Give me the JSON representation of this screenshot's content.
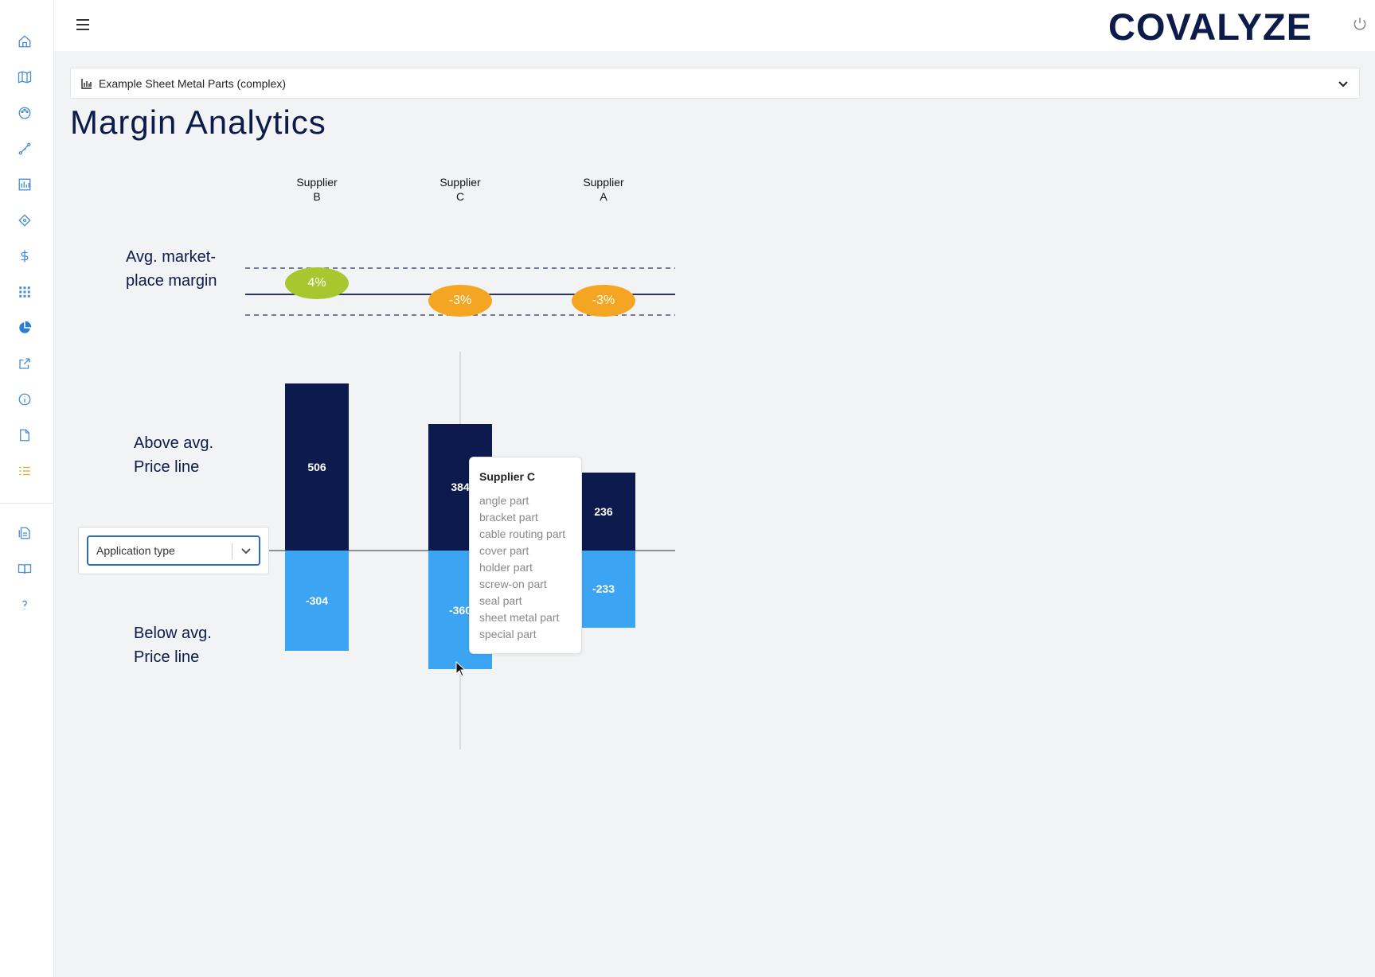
{
  "sidebar": {
    "items": [
      {
        "name": "home-icon",
        "color": "#4a8fd6"
      },
      {
        "name": "map-icon",
        "color": "#4a8fd6"
      },
      {
        "name": "palette-icon",
        "color": "#4a8fd6"
      },
      {
        "name": "flow-icon",
        "color": "#4a8fd6"
      },
      {
        "name": "chart-box-icon",
        "color": "#4a8fd6"
      },
      {
        "name": "crosshair-icon",
        "color": "#4a8fd6"
      },
      {
        "name": "dollar-icon",
        "color": "#4a8fd6"
      },
      {
        "name": "grid-icon",
        "color": "#4a8fd6"
      },
      {
        "name": "pie-chart-icon",
        "color": "#2a7fd4"
      },
      {
        "name": "external-link-icon",
        "color": "#4a8fd6"
      },
      {
        "name": "info-icon",
        "color": "#4a8fd6"
      },
      {
        "name": "document-icon",
        "color": "#4a8fd6"
      },
      {
        "name": "list-icon",
        "color": "#e0a420"
      },
      {
        "name": "export-doc-icon",
        "color": "#4a8fd6"
      },
      {
        "name": "book-icon",
        "color": "#4a8fd6"
      },
      {
        "name": "help-icon",
        "color": "#4a8fd6"
      }
    ]
  },
  "header": {
    "logo": "COVALYZE",
    "menu_icon": "hamburger-icon",
    "power_icon": "power-icon"
  },
  "dataset": {
    "label": "Example Sheet Metal Parts (complex)"
  },
  "page": {
    "title": "Margin Analytics"
  },
  "chart_data": {
    "type": "bar",
    "categories": [
      "Supplier\nB",
      "Supplier\nC",
      "Supplier\nA"
    ],
    "category_labels": [
      {
        "line1": "Supplier",
        "line2": "B"
      },
      {
        "line1": "Supplier",
        "line2": "C"
      },
      {
        "line1": "Supplier",
        "line2": "A"
      }
    ],
    "margin_row_label": {
      "line1": "Avg. market-",
      "line2": "place margin"
    },
    "above_row_label": {
      "line1": "Above avg.",
      "line2": "Price line"
    },
    "below_row_label": {
      "line1": "Below avg.",
      "line2": "Price line"
    },
    "margins": [
      "4%",
      "-3%",
      "-3%"
    ],
    "margin_values": [
      4,
      -3,
      -3
    ],
    "margin_colors": [
      "#a8c72e",
      "#f4a623",
      "#f4a623"
    ],
    "series": [
      {
        "values": [
          506,
          384,
          236
        ]
      },
      {
        "values": [
          -304,
          -360,
          -233
        ]
      }
    ],
    "value_labels_above": [
      "506",
      "384",
      "236"
    ],
    "value_labels_below": [
      "-304",
      "-360",
      "-233"
    ],
    "colors": {
      "above": "#0d1a4d",
      "below": "#3ba5f3"
    }
  },
  "filter": {
    "label": "Application type"
  },
  "tooltip": {
    "title": "Supplier C",
    "items": [
      "angle part",
      "bracket part",
      "cable routing part",
      "cover part",
      "holder part",
      "screw-on part",
      "seal part",
      "sheet metal part",
      "special part"
    ]
  }
}
